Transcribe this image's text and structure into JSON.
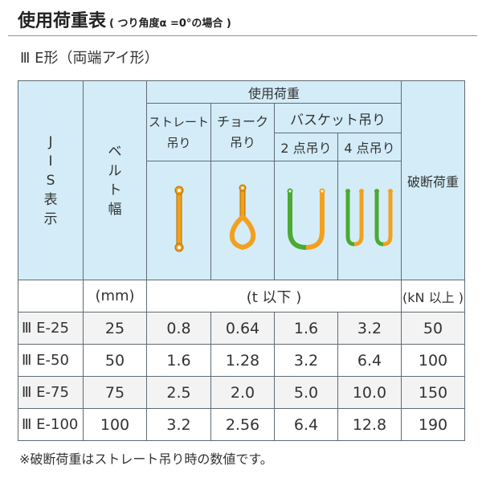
{
  "title": "使用荷重表",
  "title_note": "( つり角度α =0°の場合 )",
  "subtitle": "Ⅲ E形（両端アイ形）",
  "header": {
    "jis": [
      "J",
      "I",
      "S",
      "表",
      "示"
    ],
    "belt": [
      "ベ",
      "ル",
      "ト",
      "幅"
    ],
    "load": "使用荷重",
    "straight": "ストレート吊り",
    "choker": "チョーク吊り",
    "basket": "バスケット吊り",
    "basket2": "2 点吊り",
    "basket4": "4 点吊り",
    "break": "破断荷重"
  },
  "units": {
    "belt": "(mm)",
    "load": "(t 以下 )",
    "break": "(kN 以上 )"
  },
  "colors": {
    "header_bg": "#d3ecf8",
    "sling_orange": "#f2a01e",
    "sling_green": "#4aaa32"
  },
  "rows": [
    {
      "jis": "Ⅲ E-25",
      "width": "25",
      "straight": "0.8",
      "choker": "0.64",
      "b2": "1.6",
      "b4": "3.2",
      "break": "50"
    },
    {
      "jis": "Ⅲ E-50",
      "width": "50",
      "straight": "1.6",
      "choker": "1.28",
      "b2": "3.2",
      "b4": "6.4",
      "break": "100"
    },
    {
      "jis": "Ⅲ E-75",
      "width": "75",
      "straight": "2.5",
      "choker": "2.0",
      "b2": "5.0",
      "b4": "10.0",
      "break": "150"
    },
    {
      "jis": "Ⅲ E-100",
      "width": "100",
      "straight": "3.2",
      "choker": "2.56",
      "b2": "6.4",
      "b4": "12.8",
      "break": "190"
    }
  ],
  "note": "※破断荷重はストレート吊り時の数値です。"
}
